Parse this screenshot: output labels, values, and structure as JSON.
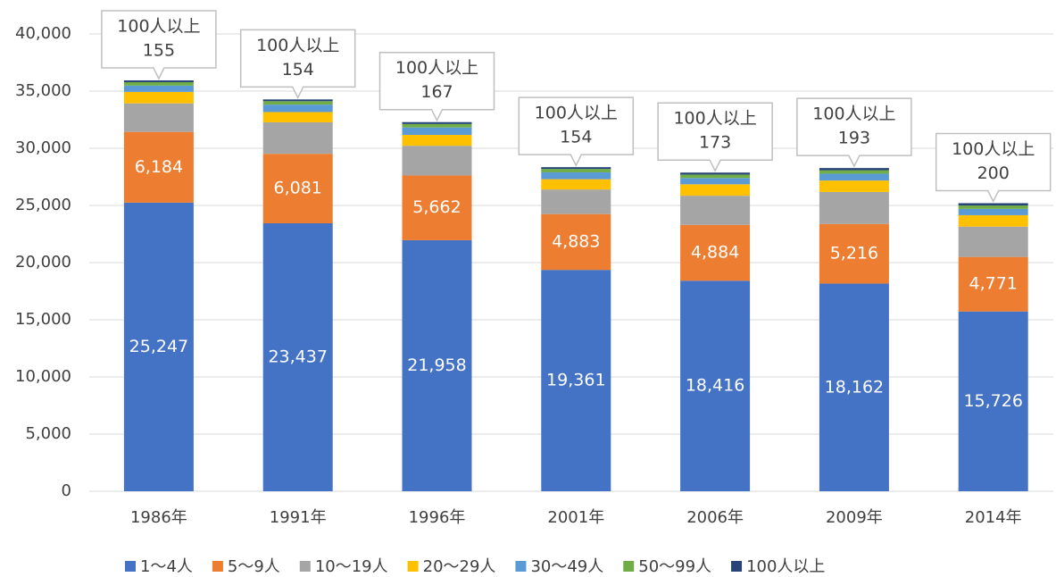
{
  "chart_data": {
    "type": "stacked_bar",
    "categories": [
      "1986年",
      "1991年",
      "1996年",
      "2001年",
      "2006年",
      "2009年",
      "2014年"
    ],
    "series": [
      {
        "name": "1～4人",
        "color": "#4472c4",
        "values": [
          25247,
          23437,
          21958,
          19361,
          18416,
          18162,
          15726
        ],
        "value_labels": [
          "25,247",
          "23,437",
          "21,958",
          "19,361",
          "18,416",
          "18,162",
          "15,726"
        ]
      },
      {
        "name": "5～9人",
        "color": "#ed7d31",
        "values": [
          6184,
          6081,
          5662,
          4883,
          4884,
          5216,
          4771
        ],
        "value_labels": [
          "6,184",
          "6,081",
          "5,662",
          "4,883",
          "4,884",
          "5,216",
          "4,771"
        ]
      },
      {
        "name": "10～19人",
        "color": "#a5a5a5",
        "values": [
          2500,
          2750,
          2600,
          2150,
          2550,
          2800,
          2650
        ]
      },
      {
        "name": "20～29人",
        "color": "#ffc000",
        "values": [
          1000,
          900,
          950,
          900,
          1000,
          1000,
          1000
        ]
      },
      {
        "name": "30～49人",
        "color": "#5b9bd5",
        "values": [
          550,
          650,
          650,
          600,
          550,
          600,
          550
        ]
      },
      {
        "name": "50～99人",
        "color": "#70ad47",
        "values": [
          300,
          300,
          300,
          300,
          300,
          300,
          300
        ]
      },
      {
        "name": "100人以上",
        "color": "#264478",
        "values": [
          155,
          154,
          167,
          154,
          173,
          193,
          200
        ]
      }
    ],
    "ylim": [
      0,
      40000
    ],
    "yticks": [
      0,
      {
        "value": 5000,
        "label": "5,000"
      },
      {
        "value": 10000,
        "label": "10,000"
      },
      {
        "value": 15000,
        "label": "15,000"
      },
      {
        "value": 20000,
        "label": "20,000"
      },
      {
        "value": 25000,
        "label": "25,000"
      },
      {
        "value": 30000,
        "label": "30,000"
      },
      {
        "value": 35000,
        "label": "35,000"
      },
      {
        "value": 40000,
        "label": "40,000"
      }
    ],
    "grid": true,
    "legend": "bottom"
  }
}
